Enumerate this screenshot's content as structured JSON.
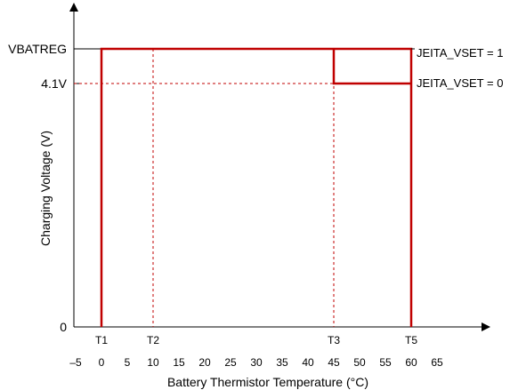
{
  "chart_data": {
    "type": "line",
    "title": "",
    "xlabel": "Battery Thermistor Temperature (°C)",
    "ylabel": "Charging Voltage (V)",
    "xlim": [
      -5,
      65
    ],
    "x_ticks": [
      "–5",
      "0",
      "5",
      "10",
      "15",
      "20",
      "25",
      "30",
      "35",
      "40",
      "45",
      "50",
      "55",
      "60",
      "65"
    ],
    "y_ticks": [
      {
        "label": "VBATREG",
        "level": "vbatreg"
      },
      {
        "label": "4.1V",
        "level": "v41"
      },
      {
        "label": "0",
        "level": "zero"
      }
    ],
    "thresholds": [
      {
        "label": "T1",
        "x": 0
      },
      {
        "label": "T2",
        "x": 10
      },
      {
        "label": "T3",
        "x": 45
      },
      {
        "label": "T5",
        "x": 60
      }
    ],
    "series": [
      {
        "name": "JEITA_VSET = 1",
        "points": [
          [
            0,
            "zero"
          ],
          [
            0,
            "vbatreg"
          ],
          [
            60,
            "vbatreg"
          ],
          [
            60,
            "zero"
          ]
        ]
      },
      {
        "name": "JEITA_VSET = 0",
        "points": [
          [
            45,
            "vbatreg"
          ],
          [
            45,
            "v41"
          ],
          [
            60,
            "v41"
          ]
        ]
      }
    ],
    "grid": false,
    "legend": "right",
    "colors": {
      "series": "#c00000",
      "axis": "#000000"
    }
  }
}
